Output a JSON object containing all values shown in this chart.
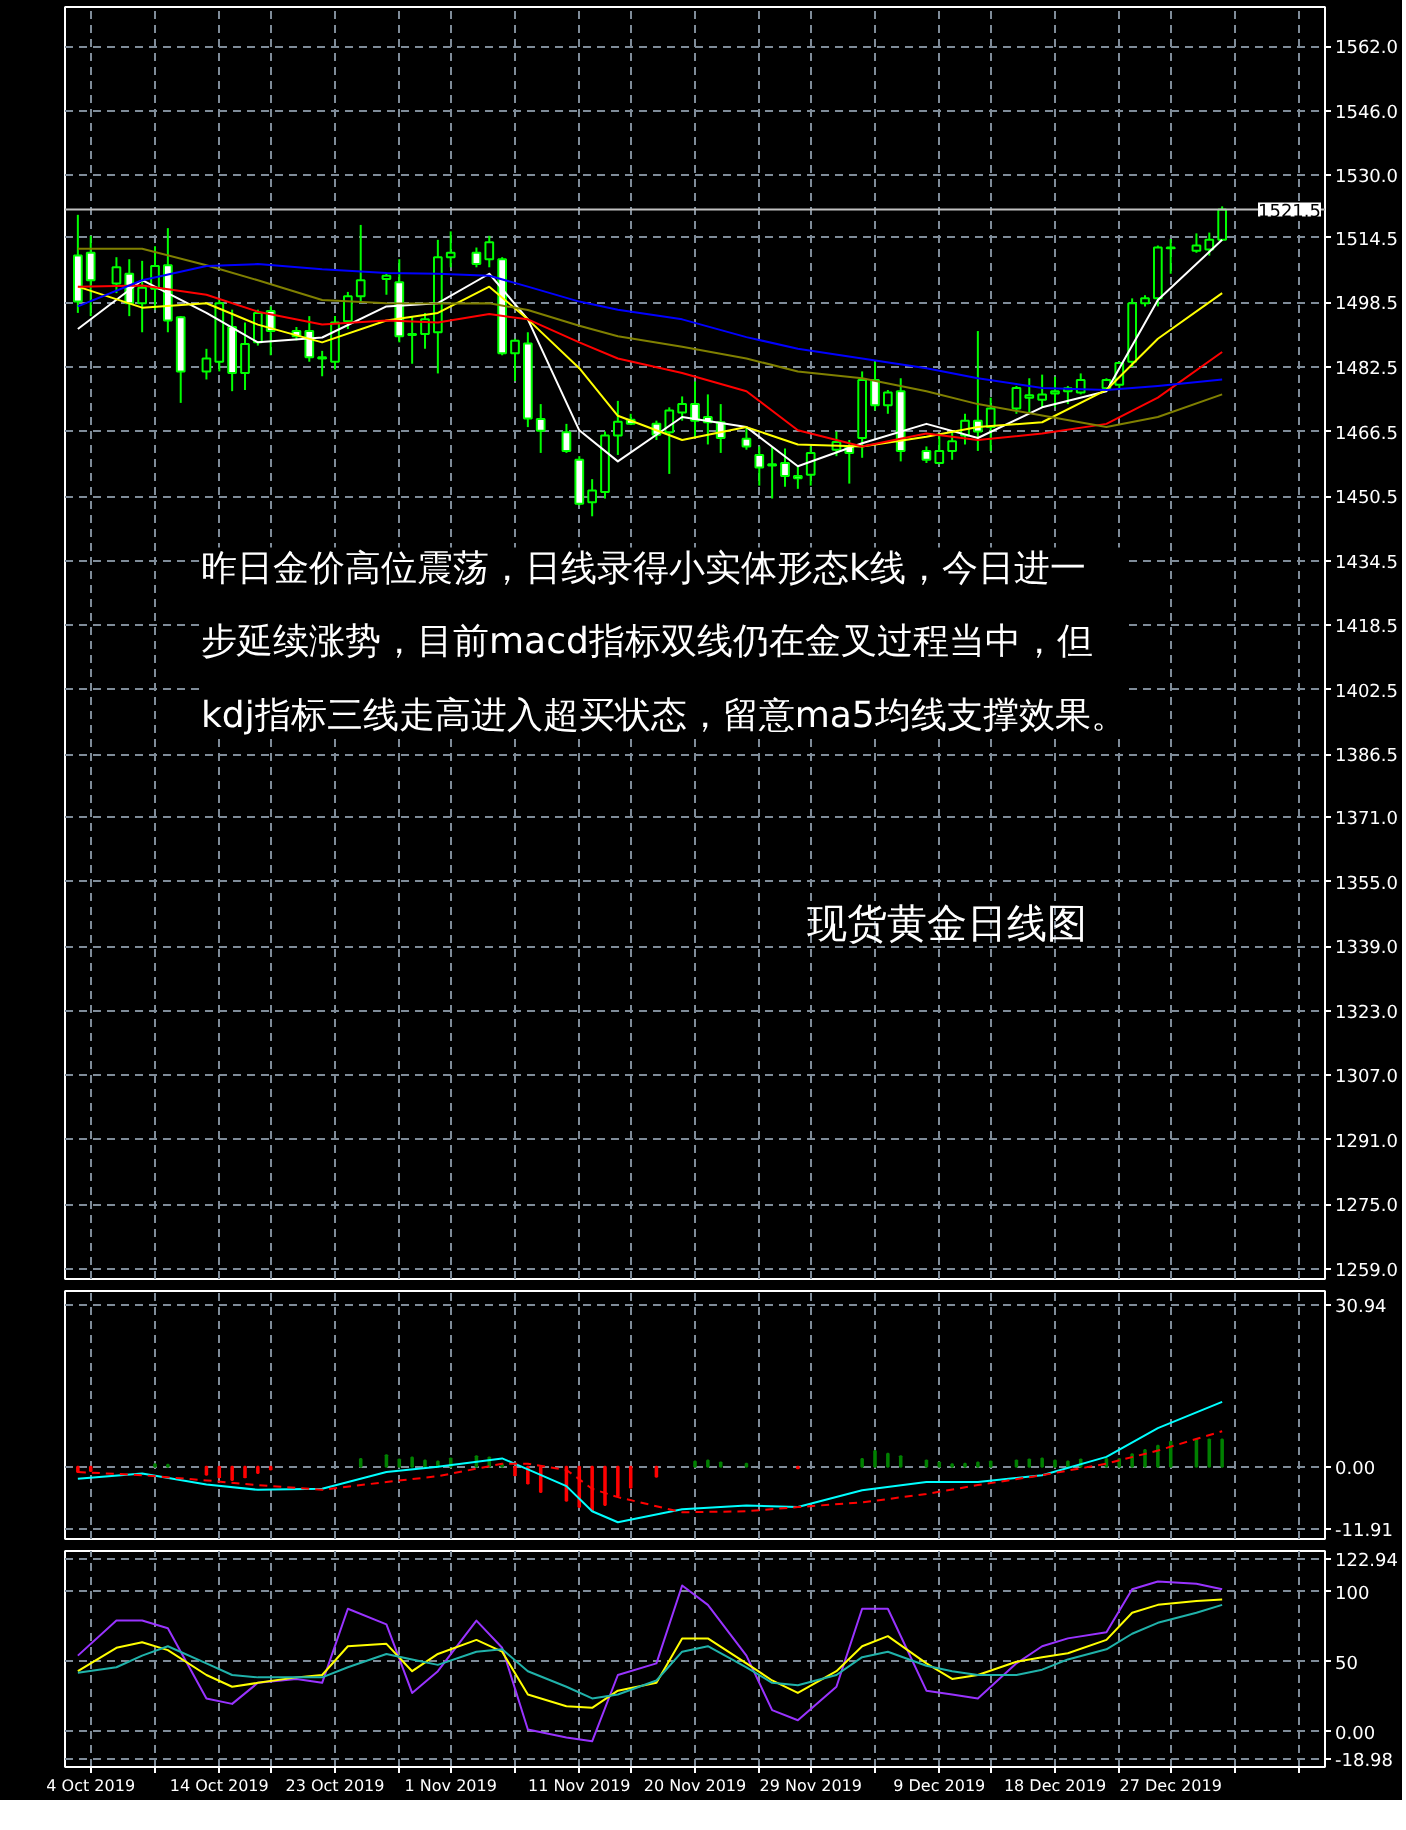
{
  "chart_data": [
    {
      "type": "candlestick",
      "title": "现货黄金日线图",
      "annotations": [
        "昨日金价高位震荡，日线录得小实体形态k线，今日进一步延续涨势，目前macd指标双线仍在金叉过程当中，但kdj指标三线走高进入超买状态，留意ma5均线支撑效果。"
      ],
      "color": "#00ff00",
      "x": [
        "2019-10-03",
        "2019-10-04",
        "2019-10-06",
        "2019-10-07",
        "2019-10-08",
        "2019-10-09",
        "2019-10-10",
        "2019-10-11",
        "2019-10-13",
        "2019-10-14",
        "2019-10-15",
        "2019-10-16",
        "2019-10-17",
        "2019-10-18",
        "2019-10-20",
        "2019-10-21",
        "2019-10-22",
        "2019-10-23",
        "2019-10-24",
        "2019-10-25",
        "2019-10-27",
        "2019-10-28",
        "2019-10-29",
        "2019-10-30",
        "2019-10-31",
        "2019-11-01",
        "2019-11-03",
        "2019-11-04",
        "2019-11-05",
        "2019-11-06",
        "2019-11-07",
        "2019-11-08",
        "2019-11-10",
        "2019-11-11",
        "2019-11-12",
        "2019-11-13",
        "2019-11-14",
        "2019-11-15",
        "2019-11-17",
        "2019-11-18",
        "2019-11-19",
        "2019-11-20",
        "2019-11-21",
        "2019-11-22",
        "2019-11-24",
        "2019-11-25",
        "2019-11-26",
        "2019-11-27",
        "2019-11-28",
        "2019-11-29",
        "2019-12-01",
        "2019-12-02",
        "2019-12-03",
        "2019-12-04",
        "2019-12-05",
        "2019-12-06",
        "2019-12-08",
        "2019-12-09",
        "2019-12-10",
        "2019-12-11",
        "2019-12-12",
        "2019-12-13",
        "2019-12-15",
        "2019-12-16",
        "2019-12-17",
        "2019-12-18",
        "2019-12-19",
        "2019-12-20",
        "2019-12-22",
        "2019-12-23",
        "2019-12-24",
        "2019-12-25",
        "2019-12-26",
        "2019-12-27",
        "2019-12-29",
        "2019-12-30",
        "2019-12-31"
      ],
      "ohlc": [
        [
          1510.1,
          1520.2,
          1495.9,
          1498.7
        ],
        [
          1510.8,
          1515.0,
          1495.1,
          1504.0
        ],
        [
          1503.2,
          1509.7,
          1500.8,
          1507.2
        ],
        [
          1505.6,
          1509.2,
          1495.1,
          1498.3
        ],
        [
          1498.3,
          1508.8,
          1491.1,
          1502.1
        ],
        [
          1501.9,
          1512.4,
          1496.7,
          1507.5
        ],
        [
          1507.7,
          1516.9,
          1491.1,
          1494.0
        ],
        [
          1494.8,
          1495.1,
          1473.6,
          1481.4
        ],
        [
          1481.4,
          1487.0,
          1479.4,
          1484.6
        ],
        [
          1483.8,
          1499.5,
          1481.4,
          1498.3
        ],
        [
          1492.4,
          1496.7,
          1476.5,
          1481.0
        ],
        [
          1481.0,
          1493.5,
          1476.8,
          1488.2
        ],
        [
          1488.6,
          1496.7,
          1487.8,
          1495.9
        ],
        [
          1496.4,
          1497.5,
          1485.4,
          1491.4
        ],
        [
          1491.4,
          1492.4,
          1489.1,
          1490.1
        ],
        [
          1491.4,
          1495.1,
          1483.8,
          1484.9
        ],
        [
          1484.9,
          1486.5,
          1480.2,
          1484.6
        ],
        [
          1483.8,
          1495.1,
          1481.9,
          1493.5
        ],
        [
          1493.8,
          1501.1,
          1491.9,
          1500.0
        ],
        [
          1500.0,
          1517.7,
          1498.3,
          1504.0
        ],
        [
          1504.3,
          1505.6,
          1500.4,
          1505.1
        ],
        [
          1503.5,
          1509.2,
          1488.6,
          1490.1
        ],
        [
          1490.7,
          1495.1,
          1483.3,
          1490.4
        ],
        [
          1490.7,
          1495.9,
          1487.0,
          1494.3
        ],
        [
          1491.1,
          1514.0,
          1480.9,
          1509.7
        ],
        [
          1509.7,
          1516.1,
          1507.2,
          1510.8
        ],
        [
          1510.8,
          1512.1,
          1507.2,
          1508.0
        ],
        [
          1509.2,
          1515.0,
          1507.2,
          1513.4
        ],
        [
          1509.2,
          1509.7,
          1485.4,
          1485.9
        ],
        [
          1485.9,
          1489.5,
          1479.0,
          1489.0
        ],
        [
          1488.3,
          1491.1,
          1467.6,
          1469.7
        ],
        [
          1469.6,
          1473.3,
          1461.2,
          1466.7
        ],
        [
          1466.3,
          1468.4,
          1461.2,
          1461.7
        ],
        [
          1459.5,
          1460.4,
          1448.2,
          1448.6
        ],
        [
          1449.0,
          1454.7,
          1445.5,
          1451.9
        ],
        [
          1451.5,
          1466.5,
          1449.9,
          1465.5
        ],
        [
          1465.5,
          1474.1,
          1460.7,
          1468.9
        ],
        [
          1469.4,
          1470.9,
          1468.1,
          1468.4
        ],
        [
          1468.4,
          1469.2,
          1464.4,
          1465.7
        ],
        [
          1466.3,
          1472.5,
          1456.0,
          1471.7
        ],
        [
          1471.2,
          1475.2,
          1469.2,
          1473.3
        ],
        [
          1473.3,
          1478.9,
          1465.2,
          1469.2
        ],
        [
          1470.1,
          1475.7,
          1463.3,
          1468.8
        ],
        [
          1468.8,
          1473.3,
          1461.2,
          1464.9
        ],
        [
          1464.7,
          1467.6,
          1462.0,
          1462.8
        ],
        [
          1460.7,
          1462.8,
          1453.1,
          1457.6
        ],
        [
          1458.4,
          1462.8,
          1449.9,
          1458.1
        ],
        [
          1458.7,
          1462.3,
          1452.8,
          1455.5
        ],
        [
          1455.5,
          1457.9,
          1452.3,
          1454.9
        ],
        [
          1455.8,
          1462.8,
          1453.1,
          1461.2
        ],
        [
          1462.0,
          1466.5,
          1460.4,
          1463.9
        ],
        [
          1462.8,
          1464.4,
          1453.6,
          1461.2
        ],
        [
          1464.9,
          1481.4,
          1460.0,
          1479.3
        ],
        [
          1479.3,
          1483.8,
          1471.7,
          1473.0
        ],
        [
          1473.0,
          1476.8,
          1470.9,
          1476.2
        ],
        [
          1476.5,
          1479.7,
          1459.1,
          1461.7
        ],
        [
          1461.7,
          1462.8,
          1458.7,
          1459.5
        ],
        [
          1458.7,
          1466.0,
          1458.4,
          1461.7
        ],
        [
          1461.7,
          1466.8,
          1459.5,
          1464.1
        ],
        [
          1465.5,
          1470.9,
          1463.3,
          1469.2
        ],
        [
          1469.2,
          1491.4,
          1461.7,
          1466.5
        ],
        [
          1467.6,
          1474.9,
          1461.7,
          1472.2
        ],
        [
          1472.2,
          1477.8,
          1470.9,
          1477.3
        ],
        [
          1474.9,
          1479.7,
          1471.3,
          1475.5
        ],
        [
          1474.4,
          1480.6,
          1472.5,
          1475.7
        ],
        [
          1475.9,
          1480.1,
          1472.5,
          1476.5
        ],
        [
          1476.5,
          1477.8,
          1473.3,
          1477.2
        ],
        [
          1476.2,
          1480.9,
          1475.7,
          1479.3
        ],
        [
          1477.2,
          1479.7,
          1476.5,
          1479.3
        ],
        [
          1478.1,
          1483.8,
          1477.3,
          1483.5
        ],
        [
          1483.8,
          1499.5,
          1482.5,
          1498.3
        ],
        [
          1498.3,
          1500.3,
          1497.5,
          1499.5
        ],
        [
          1499.5,
          1512.6,
          1497.5,
          1512.1
        ],
        [
          1511.9,
          1514.2,
          1505.6,
          1512.1
        ],
        [
          1511.3,
          1515.6,
          1510.8,
          1512.6
        ],
        [
          1511.6,
          1515.8,
          1510.1,
          1514.0
        ],
        [
          1514.0,
          1522.3,
          1513.7,
          1521.5
        ]
      ],
      "series": [
        {
          "type": "line",
          "color": "#ffffff",
          "x": [
            "2019-10-03",
            "2019-10-08",
            "2019-10-13",
            "2019-10-17",
            "2019-10-22",
            "2019-10-27",
            "2019-10-31",
            "2019-11-04",
            "2019-11-07",
            "2019-11-11",
            "2019-11-14",
            "2019-11-19",
            "2019-11-24",
            "2019-11-28",
            "2019-12-03",
            "2019-12-08",
            "2019-12-12",
            "2019-12-17",
            "2019-12-22",
            "2019-12-26",
            "2019-12-31"
          ],
          "values": [
            1491.9,
            1504.0,
            1495.9,
            1488.6,
            1489.8,
            1497.5,
            1498.3,
            1505.6,
            1494.3,
            1466.8,
            1459.1,
            1470.1,
            1467.6,
            1457.9,
            1463.6,
            1468.4,
            1464.9,
            1472.5,
            1476.5,
            1499.1,
            1514.0
          ]
        },
        {
          "type": "line",
          "color": "#ffff00",
          "x": [
            "2019-10-03",
            "2019-10-08",
            "2019-10-13",
            "2019-10-17",
            "2019-10-22",
            "2019-10-27",
            "2019-10-31",
            "2019-11-04",
            "2019-11-07",
            "2019-11-11",
            "2019-11-14",
            "2019-11-19",
            "2019-11-24",
            "2019-11-28",
            "2019-12-03",
            "2019-12-08",
            "2019-12-12",
            "2019-12-17",
            "2019-12-22",
            "2019-12-26",
            "2019-12-31"
          ],
          "values": [
            1502.4,
            1497.2,
            1498.3,
            1493.0,
            1488.6,
            1494.0,
            1495.9,
            1502.4,
            1494.3,
            1482.2,
            1470.4,
            1464.4,
            1467.6,
            1463.3,
            1462.8,
            1465.2,
            1467.6,
            1468.8,
            1476.8,
            1489.5,
            1500.8
          ]
        },
        {
          "type": "line",
          "color": "#ff0000",
          "x": [
            "2019-10-03",
            "2019-10-08",
            "2019-10-13",
            "2019-10-17",
            "2019-10-22",
            "2019-10-27",
            "2019-10-31",
            "2019-11-04",
            "2019-11-07",
            "2019-11-11",
            "2019-11-14",
            "2019-11-19",
            "2019-11-24",
            "2019-11-28",
            "2019-12-03",
            "2019-12-08",
            "2019-12-12",
            "2019-12-17",
            "2019-12-22",
            "2019-12-26",
            "2019-12-31"
          ],
          "values": [
            1502.4,
            1502.7,
            1500.4,
            1496.2,
            1493.0,
            1494.0,
            1493.5,
            1495.6,
            1494.3,
            1488.6,
            1484.6,
            1481.0,
            1476.5,
            1466.8,
            1462.8,
            1466.0,
            1464.4,
            1466.0,
            1468.4,
            1474.9,
            1486.2
          ]
        },
        {
          "type": "line",
          "color": "#808000",
          "x": [
            "2019-10-03",
            "2019-10-08",
            "2019-10-13",
            "2019-10-17",
            "2019-10-22",
            "2019-10-27",
            "2019-10-31",
            "2019-11-04",
            "2019-11-07",
            "2019-11-11",
            "2019-11-14",
            "2019-11-19",
            "2019-11-24",
            "2019-11-28",
            "2019-12-03",
            "2019-12-08",
            "2019-12-12",
            "2019-12-17",
            "2019-12-22",
            "2019-12-26",
            "2019-12-31"
          ],
          "values": [
            1511.8,
            1511.8,
            1507.7,
            1504.0,
            1499.1,
            1498.3,
            1498.2,
            1498.3,
            1496.6,
            1492.7,
            1490.1,
            1487.5,
            1484.6,
            1481.4,
            1479.7,
            1476.5,
            1473.3,
            1470.5,
            1467.6,
            1470.1,
            1475.7
          ]
        },
        {
          "type": "line",
          "color": "#0000ff",
          "x": [
            "2019-10-03",
            "2019-10-08",
            "2019-10-13",
            "2019-10-17",
            "2019-10-22",
            "2019-10-27",
            "2019-10-31",
            "2019-11-04",
            "2019-11-07",
            "2019-11-11",
            "2019-11-14",
            "2019-11-19",
            "2019-11-24",
            "2019-11-28",
            "2019-12-03",
            "2019-12-08",
            "2019-12-12",
            "2019-12-17",
            "2019-12-22",
            "2019-12-26",
            "2019-12-31"
          ],
          "values": [
            1497.5,
            1504.0,
            1507.5,
            1508.0,
            1506.7,
            1505.8,
            1505.6,
            1505.1,
            1502.4,
            1498.7,
            1496.7,
            1494.3,
            1489.9,
            1487.0,
            1484.6,
            1482.2,
            1479.7,
            1477.3,
            1476.8,
            1477.8,
            1479.4
          ]
        }
      ],
      "xlim": [
        "2019-10-02",
        "2020-01-08"
      ],
      "xticks": [
        "2019-10-04",
        "2019-10-09",
        "2019-10-14",
        "2019-10-18",
        "2019-10-23",
        "2019-10-28",
        "2019-11-01",
        "2019-11-06",
        "2019-11-11",
        "2019-11-15",
        "2019-11-20",
        "2019-11-25",
        "2019-11-29",
        "2019-12-04",
        "2019-12-09",
        "2019-12-13",
        "2019-12-18",
        "2019-12-23",
        "2019-12-27",
        "2020-01-01",
        "2020-01-06"
      ],
      "ylim": [
        1256.5,
        1571.7
      ],
      "yticks": [
        {
          "value": 1562,
          "label": "1562.0"
        },
        {
          "value": 1546,
          "label": "1546.0"
        },
        {
          "value": 1530,
          "label": "1530.0"
        },
        1514.5,
        1498.5,
        1482.5,
        1466.5,
        1450.5,
        1434.5,
        1418.5,
        1402.5,
        1386.5,
        {
          "value": 1371,
          "label": "1371.0"
        },
        {
          "value": 1355,
          "label": "1355.0"
        },
        {
          "value": 1339,
          "label": "1339.0"
        },
        {
          "value": 1323,
          "label": "1323.0"
        },
        {
          "value": 1307,
          "label": "1307.0"
        },
        {
          "value": 1291,
          "label": "1291.0"
        },
        {
          "value": 1275,
          "label": "1275.0"
        },
        {
          "value": 1259,
          "label": "1259.0"
        }
      ],
      "tick_labels": "y",
      "grid": true,
      "ref_lines": [
        {
          "axis": "y",
          "value": 1521.5,
          "label": "1521.5",
          "color": "#c0c0c0"
        }
      ]
    },
    {
      "type": "bar",
      "x": [
        "2019-10-03",
        "2019-10-04",
        "2019-10-06",
        "2019-10-07",
        "2019-10-08",
        "2019-10-09",
        "2019-10-10",
        "2019-10-11",
        "2019-10-13",
        "2019-10-14",
        "2019-10-15",
        "2019-10-16",
        "2019-10-17",
        "2019-10-18",
        "2019-10-20",
        "2019-10-21",
        "2019-10-22",
        "2019-10-23",
        "2019-10-24",
        "2019-10-25",
        "2019-10-27",
        "2019-10-28",
        "2019-10-29",
        "2019-10-30",
        "2019-10-31",
        "2019-11-01",
        "2019-11-03",
        "2019-11-04",
        "2019-11-05",
        "2019-11-06",
        "2019-11-07",
        "2019-11-08",
        "2019-11-10",
        "2019-11-11",
        "2019-11-12",
        "2019-11-13",
        "2019-11-14",
        "2019-11-15",
        "2019-11-17",
        "2019-11-18",
        "2019-11-19",
        "2019-11-20",
        "2019-11-21",
        "2019-11-22",
        "2019-11-24",
        "2019-11-25",
        "2019-11-26",
        "2019-11-27",
        "2019-11-28",
        "2019-11-29",
        "2019-12-01",
        "2019-12-02",
        "2019-12-03",
        "2019-12-04",
        "2019-12-05",
        "2019-12-06",
        "2019-12-08",
        "2019-12-09",
        "2019-12-10",
        "2019-12-11",
        "2019-12-12",
        "2019-12-13",
        "2019-12-15",
        "2019-12-16",
        "2019-12-17",
        "2019-12-18",
        "2019-12-19",
        "2019-12-20",
        "2019-12-22",
        "2019-12-23",
        "2019-12-24",
        "2019-12-25",
        "2019-12-26",
        "2019-12-27",
        "2019-12-29",
        "2019-12-30",
        "2019-12-31"
      ],
      "series": [
        {
          "color": "#008000",
          "values": [
            null,
            null,
            null,
            null,
            null,
            0.5,
            0.4,
            null,
            null,
            null,
            null,
            null,
            null,
            null,
            null,
            null,
            null,
            null,
            null,
            1.5,
            2.2,
            1.4,
            1.8,
            1.2,
            1.0,
            1.6,
            2.0,
            1.8,
            0.5,
            null,
            null,
            null,
            null,
            null,
            null,
            null,
            null,
            null,
            null,
            null,
            null,
            1.0,
            1.2,
            0.8,
            0.6,
            null,
            null,
            null,
            null,
            null,
            null,
            null,
            1.5,
            3.0,
            2.5,
            2.0,
            1.2,
            0.8,
            0.5,
            0.6,
            0.8,
            1.0,
            1.2,
            1.4,
            1.6,
            1.2,
            1.0,
            1.4,
            1.5,
            1.5,
            2.4,
            3.2,
            4.0,
            4.8,
            5.2,
            5.2,
            5.2
          ]
        },
        {
          "color": "#ff0000",
          "values": [
            -1.0,
            -0.8,
            null,
            null,
            null,
            null,
            null,
            null,
            -1.5,
            -2.0,
            -2.5,
            -2.0,
            -1.2,
            -0.5,
            null,
            null,
            null,
            null,
            null,
            null,
            null,
            null,
            null,
            null,
            null,
            null,
            null,
            null,
            null,
            -1.6,
            -3.2,
            -4.8,
            -6.5,
            -7.7,
            -8.4,
            -7.3,
            -5.6,
            -4.0,
            -1.9,
            null,
            null,
            null,
            null,
            null,
            null,
            null,
            null,
            null,
            -0.3,
            null,
            null,
            null,
            null,
            null,
            null,
            null,
            null,
            null,
            null,
            null,
            null,
            null,
            null,
            null,
            null,
            null,
            null,
            null,
            null,
            null,
            null,
            null,
            null,
            null,
            null,
            null,
            null
          ]
        },
        {
          "type": "line",
          "color": "#00ffff",
          "x": [
            "2019-10-03",
            "2019-10-08",
            "2019-10-13",
            "2019-10-17",
            "2019-10-22",
            "2019-10-27",
            "2019-10-31",
            "2019-11-05",
            "2019-11-07",
            "2019-11-10",
            "2019-11-12",
            "2019-11-14",
            "2019-11-19",
            "2019-11-24",
            "2019-11-28",
            "2019-12-03",
            "2019-12-08",
            "2019-12-12",
            "2019-12-17",
            "2019-12-22",
            "2019-12-26",
            "2019-12-31"
          ],
          "values": [
            -2.3,
            -1.3,
            -3.4,
            -4.4,
            -4.2,
            -1.0,
            0.0,
            1.6,
            -0.5,
            -3.7,
            -8.5,
            -10.6,
            -8.1,
            -7.4,
            -7.7,
            -4.5,
            -2.9,
            -2.9,
            -1.6,
            1.9,
            7.4,
            12.4
          ]
        },
        {
          "type": "line",
          "color": "#ff0000",
          "line_style": "dashed",
          "x": [
            "2019-10-03",
            "2019-10-08",
            "2019-10-13",
            "2019-10-17",
            "2019-10-22",
            "2019-10-27",
            "2019-10-31",
            "2019-11-05",
            "2019-11-07",
            "2019-11-10",
            "2019-11-12",
            "2019-11-14",
            "2019-11-19",
            "2019-11-24",
            "2019-11-28",
            "2019-12-03",
            "2019-12-08",
            "2019-12-12",
            "2019-12-17",
            "2019-12-22",
            "2019-12-26",
            "2019-12-31"
          ],
          "values": [
            -1.0,
            -1.6,
            -2.6,
            -3.5,
            -4.4,
            -2.9,
            -1.8,
            0.6,
            0.6,
            -0.6,
            -4.2,
            -5.8,
            -8.7,
            -8.5,
            -7.7,
            -6.8,
            -5.2,
            -3.5,
            -1.6,
            0.6,
            3.1,
            6.8
          ]
        }
      ],
      "xlim": [
        "2019-10-02",
        "2020-01-08"
      ],
      "xticks": [
        "2019-10-04",
        "2019-10-09",
        "2019-10-14",
        "2019-10-18",
        "2019-10-23",
        "2019-10-28",
        "2019-11-01",
        "2019-11-06",
        "2019-11-11",
        "2019-11-15",
        "2019-11-20",
        "2019-11-25",
        "2019-11-29",
        "2019-12-04",
        "2019-12-09",
        "2019-12-13",
        "2019-12-18",
        "2019-12-23",
        "2019-12-27",
        "2020-01-01",
        "2020-01-06"
      ],
      "ylim": [
        -13.8,
        33.6
      ],
      "yticks": [
        30.94,
        {
          "value": 0,
          "label": "0.00"
        },
        -11.91
      ],
      "tick_labels": "y",
      "grid": true
    },
    {
      "type": "line",
      "series": [
        {
          "color": "#9933ff",
          "x": [
            "2019-10-03",
            "2019-10-06",
            "2019-10-08",
            "2019-10-10",
            "2019-10-13",
            "2019-10-15",
            "2019-10-17",
            "2019-10-20",
            "2019-10-22",
            "2019-10-24",
            "2019-10-27",
            "2019-10-29",
            "2019-10-31",
            "2019-11-03",
            "2019-11-05",
            "2019-11-07",
            "2019-11-10",
            "2019-11-12",
            "2019-11-14",
            "2019-11-17",
            "2019-11-19",
            "2019-11-21",
            "2019-11-24",
            "2019-11-26",
            "2019-11-28",
            "2019-12-01",
            "2019-12-03",
            "2019-12-05",
            "2019-12-08",
            "2019-12-10",
            "2019-12-12",
            "2019-12-15",
            "2019-12-17",
            "2019-12-19",
            "2019-12-22",
            "2019-12-24",
            "2019-12-26",
            "2019-12-29",
            "2019-12-31"
          ],
          "values": [
            54.4,
            79.4,
            79.4,
            73.9,
            23.9,
            20.0,
            35.0,
            37.8,
            35.0,
            87.8,
            76.7,
            27.8,
            43.3,
            79.4,
            60.0,
            1.7,
            -3.9,
            -6.7,
            40.6,
            48.9,
            104.4,
            90.6,
            54.4,
            15.6,
            8.3,
            32.2,
            87.8,
            87.8,
            29.4,
            26.7,
            23.9,
            48.9,
            61.1,
            66.7,
            71.1,
            101.7,
            107.2,
            105.6,
            101.7
          ]
        },
        {
          "color": "#ffff00",
          "x": [
            "2019-10-03",
            "2019-10-06",
            "2019-10-08",
            "2019-10-10",
            "2019-10-13",
            "2019-10-15",
            "2019-10-17",
            "2019-10-20",
            "2019-10-22",
            "2019-10-24",
            "2019-10-27",
            "2019-10-29",
            "2019-10-31",
            "2019-11-03",
            "2019-11-05",
            "2019-11-07",
            "2019-11-10",
            "2019-11-12",
            "2019-11-14",
            "2019-11-17",
            "2019-11-19",
            "2019-11-21",
            "2019-11-24",
            "2019-11-26",
            "2019-11-28",
            "2019-12-01",
            "2019-12-03",
            "2019-12-05",
            "2019-12-08",
            "2019-12-10",
            "2019-12-12",
            "2019-12-15",
            "2019-12-17",
            "2019-12-19",
            "2019-12-22",
            "2019-12-24",
            "2019-12-26",
            "2019-12-29",
            "2019-12-31"
          ],
          "values": [
            43.3,
            60.0,
            63.9,
            58.3,
            40.6,
            32.2,
            35.0,
            38.9,
            40.6,
            61.1,
            62.8,
            43.3,
            55.6,
            65.6,
            57.2,
            26.7,
            18.3,
            17.2,
            29.4,
            35.0,
            66.7,
            66.7,
            48.9,
            36.7,
            27.8,
            43.3,
            61.1,
            68.3,
            48.9,
            37.8,
            40.6,
            50.0,
            53.3,
            56.1,
            65.6,
            85.0,
            90.6,
            93.3,
            94.4
          ]
        },
        {
          "color": "#20b2aa",
          "x": [
            "2019-10-03",
            "2019-10-06",
            "2019-10-08",
            "2019-10-10",
            "2019-10-13",
            "2019-10-15",
            "2019-10-17",
            "2019-10-20",
            "2019-10-22",
            "2019-10-24",
            "2019-10-27",
            "2019-10-29",
            "2019-10-31",
            "2019-11-03",
            "2019-11-05",
            "2019-11-07",
            "2019-11-10",
            "2019-11-12",
            "2019-11-14",
            "2019-11-17",
            "2019-11-19",
            "2019-11-21",
            "2019-11-24",
            "2019-11-26",
            "2019-11-28",
            "2019-12-01",
            "2019-12-03",
            "2019-12-05",
            "2019-12-08",
            "2019-12-10",
            "2019-12-12",
            "2019-12-15",
            "2019-12-17",
            "2019-12-19",
            "2019-12-22",
            "2019-12-24",
            "2019-12-26",
            "2019-12-29",
            "2019-12-31"
          ],
          "values": [
            42.2,
            46.1,
            54.4,
            61.1,
            48.9,
            40.6,
            38.9,
            38.9,
            38.9,
            46.1,
            55.6,
            51.7,
            47.8,
            57.2,
            58.9,
            43.3,
            32.2,
            23.9,
            26.7,
            36.7,
            57.2,
            61.1,
            46.1,
            35.0,
            33.3,
            40.6,
            53.3,
            57.2,
            47.2,
            43.3,
            40.6,
            40.6,
            44.4,
            51.7,
            58.9,
            70.0,
            77.8,
            85.0,
            90.6
          ]
        }
      ],
      "xlim": [
        "2019-10-02",
        "2020-01-08"
      ],
      "xticks": [
        {
          "value": "2019-10-04",
          "label": "4 Oct 2019"
        },
        {
          "value": "2019-10-09",
          "label": null
        },
        {
          "value": "2019-10-14",
          "label": "14 Oct 2019"
        },
        {
          "value": "2019-10-18",
          "label": null
        },
        {
          "value": "2019-10-23",
          "label": "23 Oct 2019"
        },
        {
          "value": "2019-10-28",
          "label": null
        },
        {
          "value": "2019-11-01",
          "label": "1 Nov 2019"
        },
        {
          "value": "2019-11-06",
          "label": null
        },
        {
          "value": "2019-11-11",
          "label": "11 Nov 2019"
        },
        {
          "value": "2019-11-15",
          "label": null
        },
        {
          "value": "2019-11-20",
          "label": "20 Nov 2019"
        },
        {
          "value": "2019-11-25",
          "label": null
        },
        {
          "value": "2019-11-29",
          "label": "29 Nov 2019"
        },
        {
          "value": "2019-12-04",
          "label": null
        },
        {
          "value": "2019-12-09",
          "label": "9 Dec 2019"
        },
        {
          "value": "2019-12-13",
          "label": null
        },
        {
          "value": "2019-12-18",
          "label": "18 Dec 2019"
        },
        {
          "value": "2019-12-23",
          "label": null
        },
        {
          "value": "2019-12-27",
          "label": "27 Dec 2019"
        },
        {
          "value": "2020-01-01",
          "label": null
        },
        {
          "value": "2020-01-06",
          "label": null
        }
      ],
      "ylim": [
        -25,
        129
      ],
      "yticks": [
        122.94,
        100,
        50,
        {
          "value": 0,
          "label": "0.00"
        },
        -18.98
      ],
      "grid": true
    }
  ]
}
